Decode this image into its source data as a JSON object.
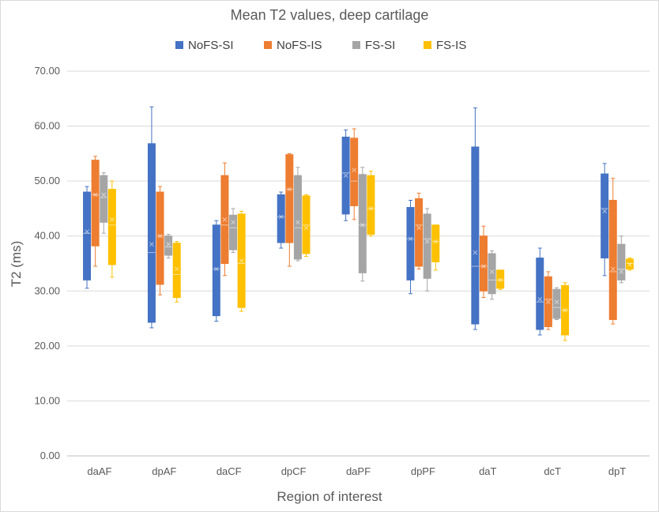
{
  "chart_data": {
    "type": "boxplot",
    "title": "Mean T2 values, deep cartilage",
    "xlabel": "Region of interest",
    "ylabel": "T2 (ms)",
    "ylim": [
      0,
      70
    ],
    "ytick_step": 10,
    "ytick_labels": [
      "0.00",
      "10.00",
      "20.00",
      "30.00",
      "40.00",
      "50.00",
      "60.00",
      "70.00"
    ],
    "gridlines": true,
    "legend_position": "top",
    "categories": [
      "daAF",
      "dpAF",
      "daCF",
      "dpCF",
      "daPF",
      "dpPF",
      "daT",
      "dcT",
      "dpT"
    ],
    "series": [
      {
        "name": "NoFS-SI",
        "color": "#4472C4",
        "boxes": [
          {
            "min": 30.5,
            "q1": 32.0,
            "median": 40.5,
            "q3": 48.0,
            "max": 49.0,
            "mean": 40.8
          },
          {
            "min": 23.3,
            "q1": 24.3,
            "median": 37.0,
            "q3": 56.8,
            "max": 63.5,
            "mean": 38.5
          },
          {
            "min": 24.5,
            "q1": 25.5,
            "median": 34.0,
            "q3": 42.0,
            "max": 42.8,
            "mean": 34.0
          },
          {
            "min": 37.8,
            "q1": 38.8,
            "median": 43.5,
            "q3": 47.5,
            "max": 48.0,
            "mean": 43.5
          },
          {
            "min": 42.8,
            "q1": 44.0,
            "median": 51.5,
            "q3": 58.0,
            "max": 59.3,
            "mean": 51.0
          },
          {
            "min": 29.5,
            "q1": 32.0,
            "median": 39.5,
            "q3": 45.2,
            "max": 46.5,
            "mean": 39.5
          },
          {
            "min": 23.0,
            "q1": 24.0,
            "median": 34.5,
            "q3": 56.2,
            "max": 63.3,
            "mean": 37.0
          },
          {
            "min": 22.0,
            "q1": 23.0,
            "median": 28.0,
            "q3": 36.0,
            "max": 37.8,
            "mean": 28.5
          },
          {
            "min": 32.8,
            "q1": 36.0,
            "median": 45.0,
            "q3": 51.3,
            "max": 53.2,
            "mean": 44.5
          }
        ]
      },
      {
        "name": "NoFS-IS",
        "color": "#ED7D31",
        "boxes": [
          {
            "min": 34.5,
            "q1": 38.2,
            "median": 47.5,
            "q3": 53.8,
            "max": 54.5,
            "mean": 47.5
          },
          {
            "min": 29.3,
            "q1": 31.2,
            "median": 40.0,
            "q3": 48.0,
            "max": 49.0,
            "mean": 40.0
          },
          {
            "min": 32.8,
            "q1": 35.0,
            "median": 42.0,
            "q3": 51.0,
            "max": 53.3,
            "mean": 43.0
          },
          {
            "min": 34.5,
            "q1": 38.8,
            "median": 48.5,
            "q3": 54.8,
            "max": 55.0,
            "mean": 48.5
          },
          {
            "min": 43.0,
            "q1": 45.5,
            "median": 50.0,
            "q3": 57.8,
            "max": 59.5,
            "mean": 52.0
          },
          {
            "min": 34.0,
            "q1": 34.5,
            "median": 42.0,
            "q3": 46.8,
            "max": 47.8,
            "mean": 41.5
          },
          {
            "min": 28.8,
            "q1": 30.0,
            "median": 34.5,
            "q3": 40.0,
            "max": 41.8,
            "mean": 34.5
          },
          {
            "min": 23.0,
            "q1": 23.5,
            "median": 28.5,
            "q3": 32.6,
            "max": 33.5,
            "mean": 28.0
          },
          {
            "min": 24.0,
            "q1": 24.8,
            "median": 33.5,
            "q3": 46.5,
            "max": 50.5,
            "mean": 34.0
          }
        ]
      },
      {
        "name": "FS-SI",
        "color": "#A5A5A5",
        "boxes": [
          {
            "min": 40.5,
            "q1": 42.5,
            "median": 47.0,
            "q3": 51.0,
            "max": 51.5,
            "mean": 47.5
          },
          {
            "min": 36.0,
            "q1": 36.5,
            "median": 38.0,
            "q3": 40.0,
            "max": 40.3,
            "mean": 38.5
          },
          {
            "min": 37.0,
            "q1": 37.5,
            "median": 41.5,
            "q3": 43.8,
            "max": 45.0,
            "mean": 42.5
          },
          {
            "min": 35.5,
            "q1": 35.8,
            "median": 41.5,
            "q3": 51.0,
            "max": 52.5,
            "mean": 42.5
          },
          {
            "min": 31.8,
            "q1": 33.3,
            "median": 42.0,
            "q3": 51.2,
            "max": 52.5,
            "mean": 42.0
          },
          {
            "min": 30.0,
            "q1": 32.3,
            "median": 39.5,
            "q3": 44.0,
            "max": 45.0,
            "mean": 39.0
          },
          {
            "min": 28.5,
            "q1": 29.5,
            "median": 32.0,
            "q3": 36.8,
            "max": 37.3,
            "mean": 33.5
          },
          {
            "min": 24.8,
            "q1": 25.0,
            "median": 27.0,
            "q3": 30.3,
            "max": 30.6,
            "mean": 28.0
          },
          {
            "min": 31.5,
            "q1": 32.0,
            "median": 34.0,
            "q3": 38.5,
            "max": 40.0,
            "mean": 33.5
          }
        ]
      },
      {
        "name": "FS-IS",
        "color": "#FFC000",
        "boxes": [
          {
            "min": 32.5,
            "q1": 34.8,
            "median": 42.0,
            "q3": 48.5,
            "max": 50.0,
            "mean": 43.0
          },
          {
            "min": 28.0,
            "q1": 28.8,
            "median": 33.0,
            "q3": 38.7,
            "max": 39.0,
            "mean": 34.0
          },
          {
            "min": 26.3,
            "q1": 27.0,
            "median": 35.0,
            "q3": 44.0,
            "max": 44.5,
            "mean": 35.5
          },
          {
            "min": 36.3,
            "q1": 36.8,
            "median": 42.0,
            "q3": 47.3,
            "max": 47.5,
            "mean": 41.5
          },
          {
            "min": 40.0,
            "q1": 40.3,
            "median": 45.0,
            "q3": 51.0,
            "max": 51.8,
            "mean": 45.0
          },
          {
            "min": 33.8,
            "q1": 35.3,
            "median": 39.0,
            "q3": 42.0,
            "max": 42.0,
            "mean": 39.0
          },
          {
            "min": 30.3,
            "q1": 30.5,
            "median": 32.0,
            "q3": 33.8,
            "max": 33.8,
            "mean": 32.0
          },
          {
            "min": 21.0,
            "q1": 22.0,
            "median": 26.5,
            "q3": 31.0,
            "max": 31.5,
            "mean": 26.5
          },
          {
            "min": 33.8,
            "q1": 34.0,
            "median": 35.0,
            "q3": 35.8,
            "max": 36.0,
            "mean": 34.8
          }
        ]
      }
    ]
  }
}
